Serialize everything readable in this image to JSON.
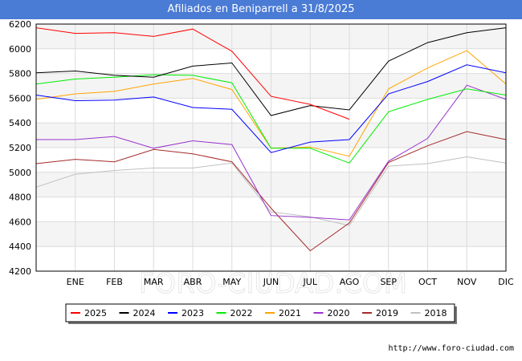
{
  "chart_data": {
    "type": "line",
    "title": "Afiliados en Beniparrell a 31/8/2025",
    "categories": [
      "",
      "ENE",
      "FEB",
      "MAR",
      "ABR",
      "MAY",
      "JUN",
      "JUL",
      "AGO",
      "SEP",
      "OCT",
      "NOV",
      "DIC"
    ],
    "yticks": [
      4200,
      4400,
      4600,
      4800,
      5000,
      5200,
      5400,
      5600,
      5800,
      6000,
      6200
    ],
    "ylim": [
      4200,
      6200
    ],
    "grid": true,
    "legend_position": "bottom",
    "watermark": "FORO-CIUDAD.COM",
    "series": [
      {
        "name": "2025",
        "color": "#ff0000",
        "values": [
          6170,
          6125,
          6130,
          6100,
          6160,
          5980,
          5615,
          5550,
          5430,
          null,
          null,
          null,
          null
        ]
      },
      {
        "name": "2024",
        "color": "#000000",
        "values": [
          5805,
          5820,
          5785,
          5770,
          5860,
          5885,
          5460,
          5540,
          5505,
          5900,
          6050,
          6130,
          6170
        ]
      },
      {
        "name": "2023",
        "color": "#0000ff",
        "values": [
          5625,
          5580,
          5585,
          5610,
          5525,
          5510,
          5160,
          5245,
          5265,
          5635,
          5735,
          5870,
          5805
        ]
      },
      {
        "name": "2022",
        "color": "#00ee00",
        "values": [
          5715,
          5755,
          5770,
          5790,
          5785,
          5725,
          5195,
          5195,
          5075,
          5490,
          5590,
          5675,
          5625
        ]
      },
      {
        "name": "2021",
        "color": "#ffa500",
        "values": [
          5590,
          5635,
          5655,
          5715,
          5760,
          5670,
          5195,
          5205,
          5130,
          5675,
          5845,
          5985,
          5715
        ]
      },
      {
        "name": "2020",
        "color": "#9932cc",
        "values": [
          5265,
          5265,
          5290,
          5195,
          5255,
          5225,
          4650,
          4635,
          4615,
          5090,
          5275,
          5705,
          5590
        ]
      },
      {
        "name": "2019",
        "color": "#a52a2a",
        "values": [
          5070,
          5105,
          5085,
          5185,
          5150,
          5085,
          4710,
          4365,
          4590,
          5080,
          5215,
          5330,
          5265
        ]
      },
      {
        "name": "2018",
        "color": "#c0c0c0",
        "values": [
          4880,
          4985,
          5015,
          5035,
          5035,
          5075,
          4680,
          4640,
          4570,
          5050,
          5070,
          5125,
          5075
        ]
      }
    ]
  },
  "footer": {
    "url": "http://www.foro-ciudad.com"
  }
}
